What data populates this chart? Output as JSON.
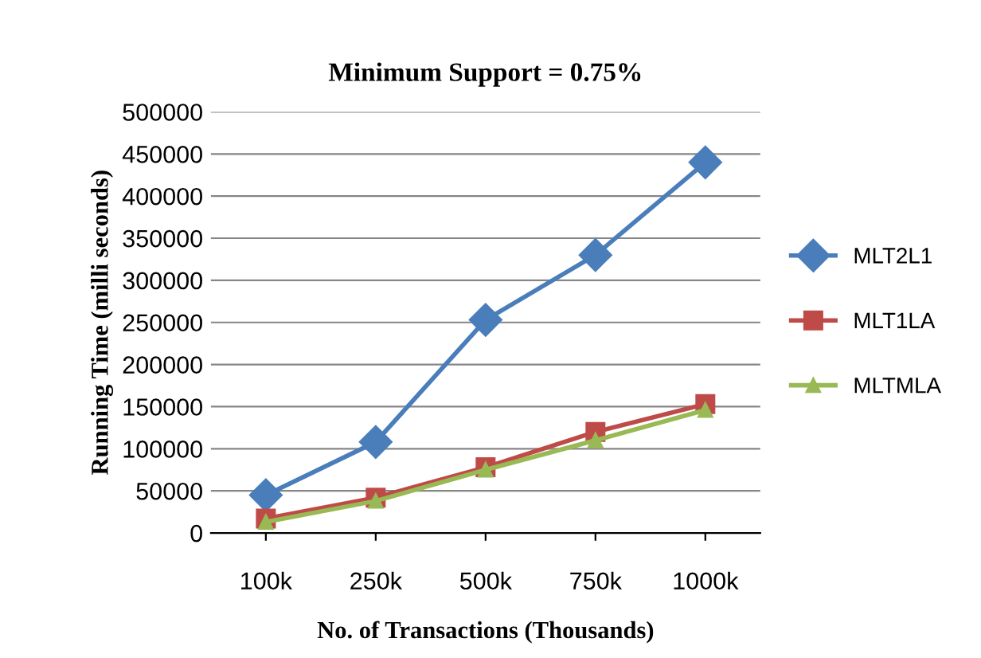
{
  "chart_data": {
    "type": "line",
    "title": "Minimum Support = 0.75%",
    "xlabel": "No. of Transactions (Thousands)",
    "ylabel": "Running Time (milli seconds)",
    "categories": [
      "100k",
      "250k",
      "500k",
      "750k",
      "1000k"
    ],
    "series": [
      {
        "name": "MLT2L1",
        "color": "#4a7ebb",
        "marker": "diamond",
        "values": [
          45000,
          108000,
          253000,
          330000,
          440000
        ]
      },
      {
        "name": "MLT1LA",
        "color": "#be4b48",
        "marker": "square",
        "values": [
          17000,
          42000,
          78000,
          120000,
          153000
        ]
      },
      {
        "name": "MLTMLA",
        "color": "#98b954",
        "marker": "triangle",
        "values": [
          13000,
          38000,
          75000,
          110000,
          146000
        ]
      }
    ],
    "ylim": [
      0,
      500000
    ],
    "yticks": [
      0,
      50000,
      100000,
      150000,
      200000,
      250000,
      300000,
      350000,
      400000,
      450000,
      500000
    ],
    "grid": "y",
    "legend": "right",
    "line_style": "solid"
  }
}
